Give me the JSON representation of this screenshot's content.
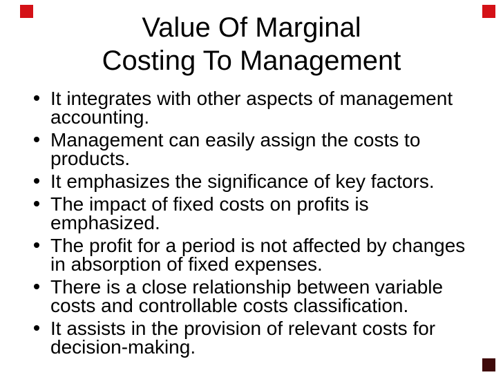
{
  "slide": {
    "title": {
      "line1": "Value Of Marginal",
      "line2": "Costing To Management"
    },
    "bullets": [
      "It integrates with other aspects of management accounting.",
      "Management can easily assign the costs to products.",
      "It emphasizes the significance of key factors.",
      "The impact of fixed costs on profits is emphasized.",
      "The profit for a period is not affected by changes in absorption of fixed expenses.",
      "There is a close relationship between variable costs and controllable costs classification.",
      "It assists in the provision of relevant costs for decision-making."
    ],
    "colors": {
      "background": "#ffffff",
      "text": "#000000",
      "accent_red": "#d41117",
      "accent_dark_maroon": "#3f0a0a"
    }
  }
}
